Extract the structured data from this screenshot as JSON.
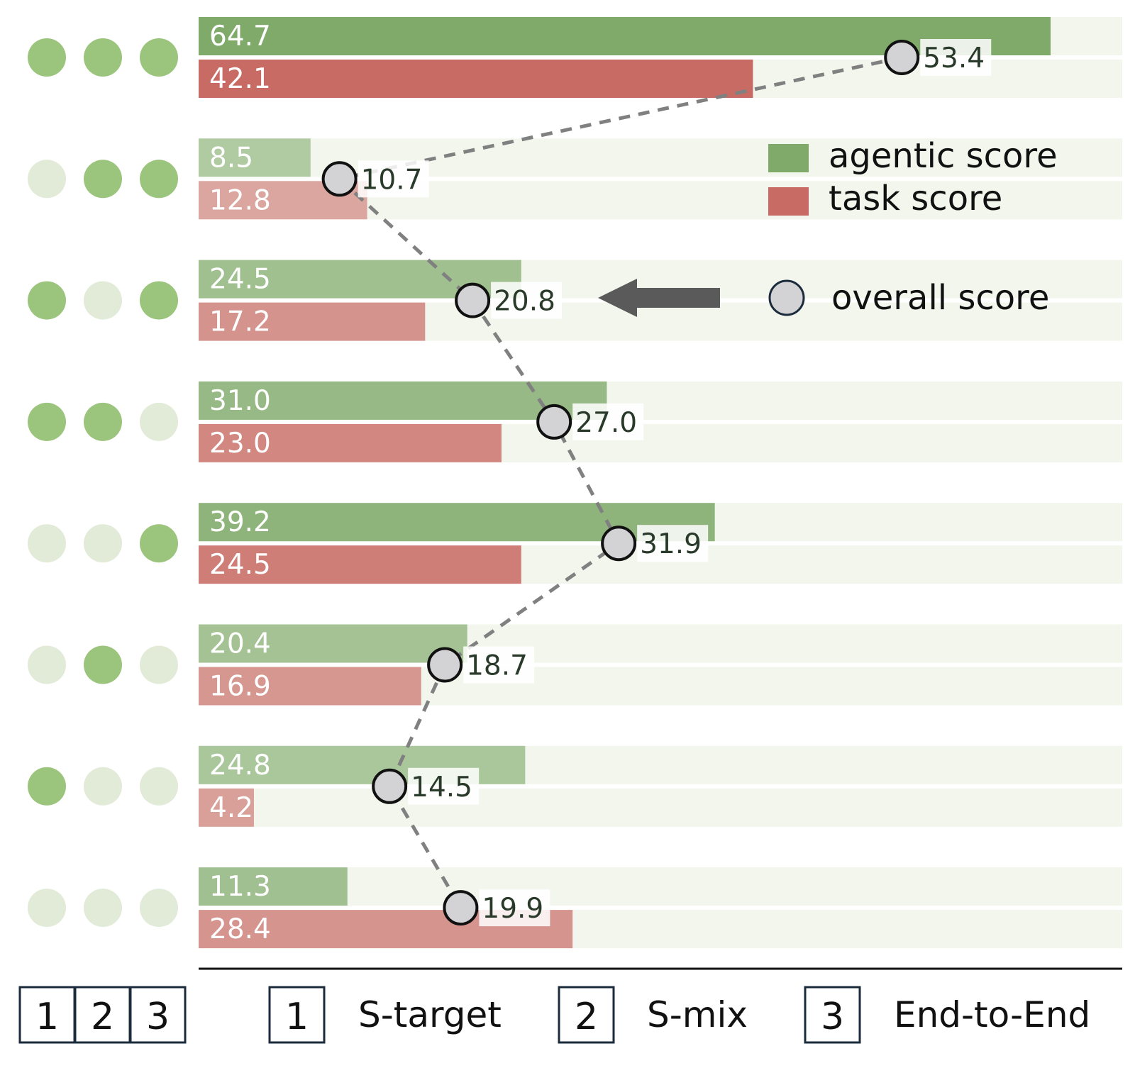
{
  "chart_data": {
    "type": "bar",
    "orientation": "horizontal",
    "rows": [
      {
        "active": [
          true,
          true,
          true
        ],
        "agentic": 64.7,
        "task": 42.1,
        "overall": 53.4
      },
      {
        "active": [
          false,
          true,
          true
        ],
        "agentic": 8.5,
        "task": 12.8,
        "overall": 10.7
      },
      {
        "active": [
          true,
          false,
          true
        ],
        "agentic": 24.5,
        "task": 17.2,
        "overall": 20.8
      },
      {
        "active": [
          true,
          true,
          false
        ],
        "agentic": 31.0,
        "task": 23.0,
        "overall": 27.0
      },
      {
        "active": [
          false,
          false,
          true
        ],
        "agentic": 39.2,
        "task": 24.5,
        "overall": 31.9
      },
      {
        "active": [
          false,
          true,
          false
        ],
        "agentic": 20.4,
        "task": 16.9,
        "overall": 18.7
      },
      {
        "active": [
          true,
          false,
          false
        ],
        "agentic": 24.8,
        "task": 4.2,
        "overall": 14.5
      },
      {
        "active": [
          false,
          false,
          false
        ],
        "agentic": 11.3,
        "task": 28.4,
        "overall": 19.9
      }
    ],
    "xlim": [
      0,
      70
    ],
    "legend": {
      "agentic": "agentic score",
      "task": "task score",
      "overall": "overall score",
      "placement": "top-right"
    },
    "key": {
      "columns": [
        "1",
        "2",
        "3"
      ],
      "entries": [
        {
          "num": "1",
          "label": "S-target"
        },
        {
          "num": "2",
          "label": "S-mix"
        },
        {
          "num": "3",
          "label": "End-to-End"
        }
      ]
    },
    "colors": {
      "agentic": "#7faa6a",
      "task": "#c96b65",
      "track": "#f2f6ed",
      "dot_on": "#9bc47c",
      "dot_off": "#e2ead8",
      "point_fill": "#d3d3d5",
      "dashed_line": "#808080"
    }
  }
}
